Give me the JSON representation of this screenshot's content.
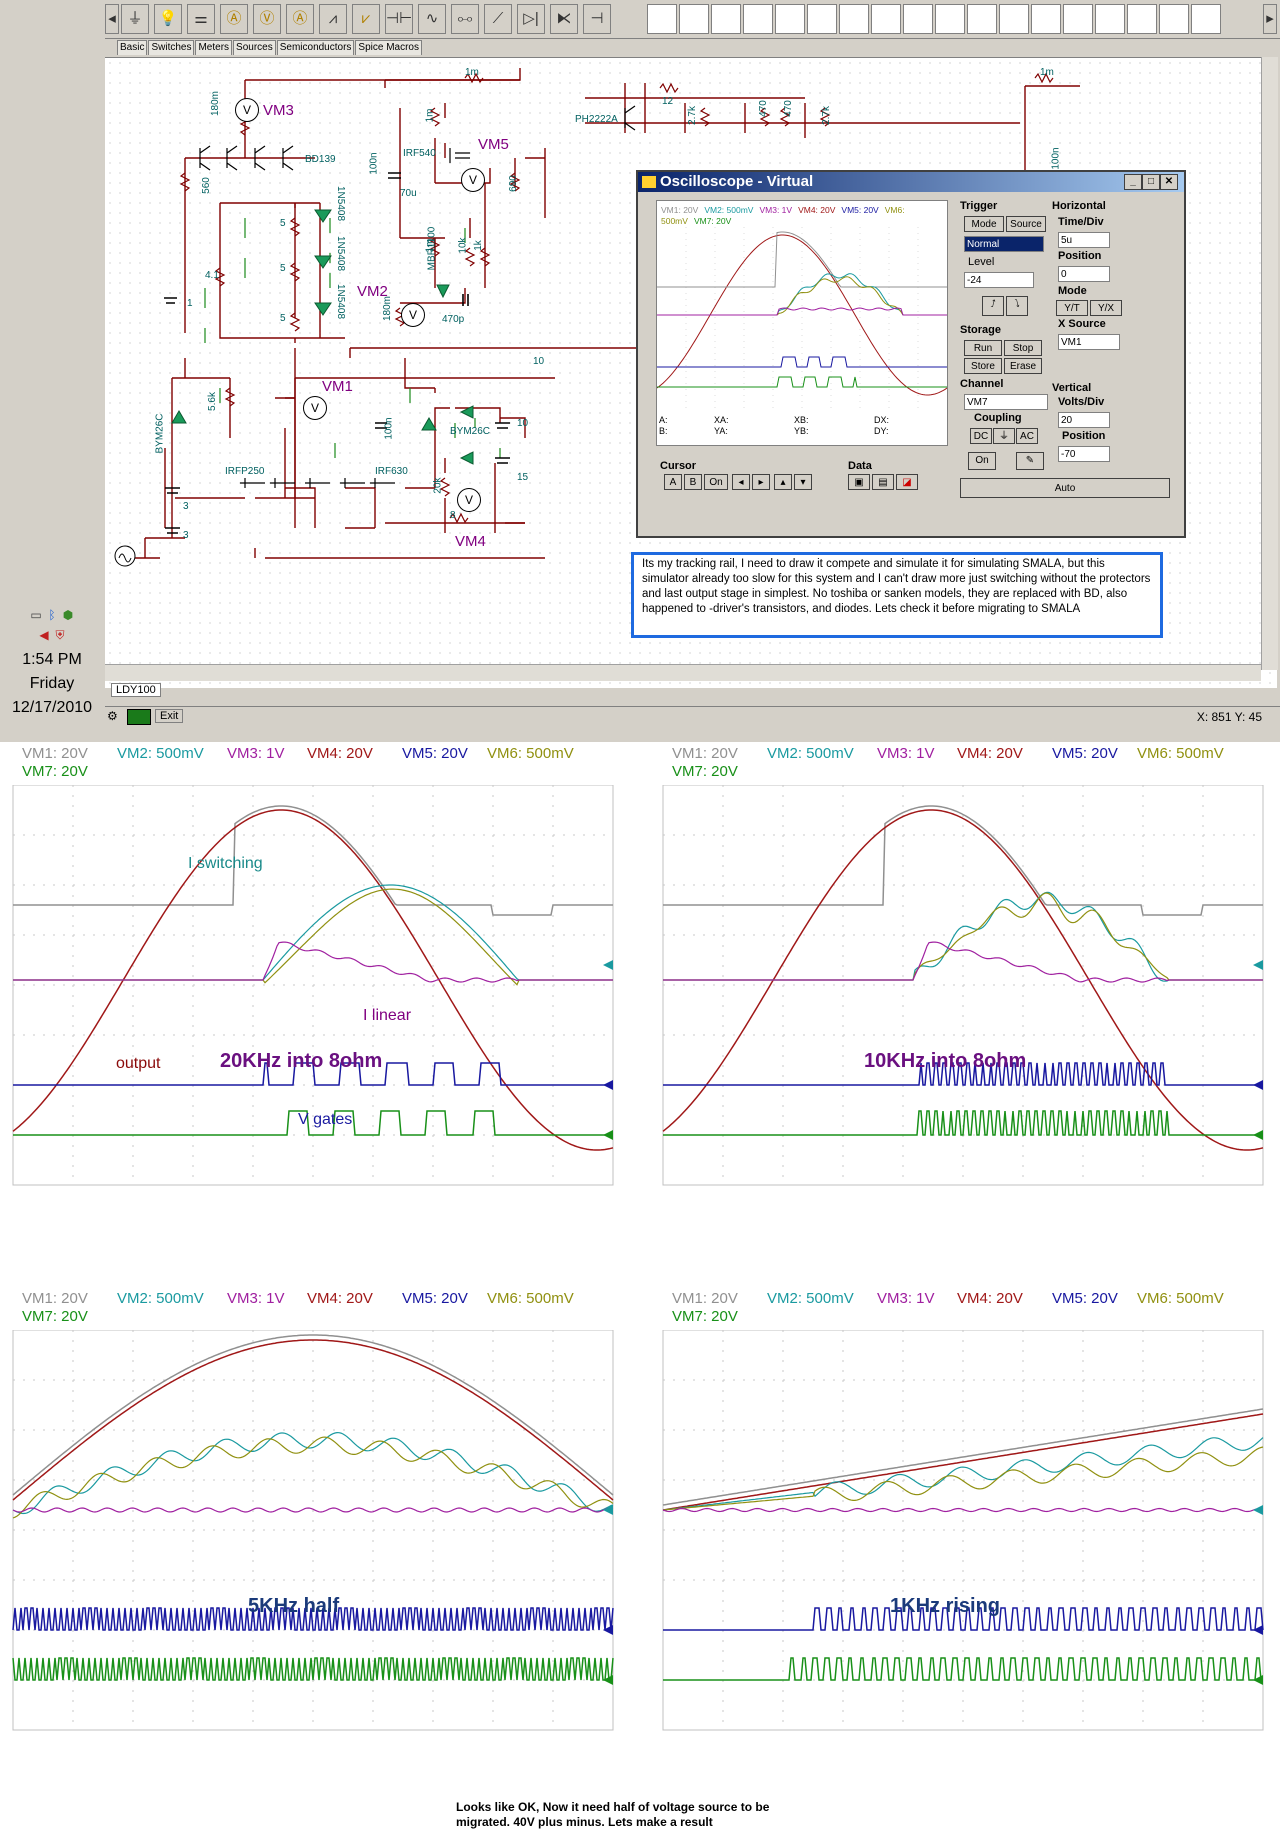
{
  "tray": {
    "time": "1:54 PM",
    "day": "Friday",
    "date": "12/17/2010"
  },
  "toolbar": {
    "icons": [
      "ground-icon",
      "bulb-icon",
      "battery-icon",
      "ammeter-icon",
      "voltmeter-icon",
      "ammeter2-icon",
      "resistor-icon",
      "potentiometer-icon",
      "capacitor-icon",
      "inductor-icon",
      "transformer-icon",
      "switch-icon",
      "diode-icon",
      "zener-icon",
      "plus-icon"
    ],
    "tabs": [
      "Basic",
      "Switches",
      "Meters",
      "Sources",
      "Semiconductors",
      "Spice Macros"
    ]
  },
  "schematic": {
    "sheet_tab": "LDY100",
    "status_exit": "Exit",
    "coords": "X: 851  Y: 45",
    "meters": {
      "vm1": "VM1",
      "vm2": "VM2",
      "vm3": "VM3",
      "vm4": "VM4",
      "vm5": "VM5"
    },
    "labels": {
      "r180m": "180m",
      "r1m_a": "1m",
      "r1m_b": "1m",
      "r1m_c": "1m",
      "r1m_d": "1m",
      "r560": "560",
      "bd139": "BD139",
      "q5": "5",
      "q5b": "5",
      "q5c": "5",
      "d1": "1N5408",
      "d2": "1N5408",
      "d3": "1N5408",
      "r41": "4.1",
      "b1": "1",
      "r56k": "5.6k",
      "bym1": "BYM26C",
      "bym2": "BYM26C",
      "irf540": "IRF540",
      "irfp250": "IRFP250",
      "irf630": "IRF630",
      "mbr": "MBR1100",
      "c100n": "100n",
      "c100n_b": "100n",
      "c100n_c": "100n",
      "l70u": "70u",
      "r10k": "10k",
      "r1k": "1k",
      "r690": "690",
      "c470p": "470p",
      "ph": "PH2222A",
      "r12": "12",
      "r27k": "2.7k",
      "r470": "470",
      "r470b": "470",
      "r27kb": "2.7k",
      "r20k": "20k",
      "r8": "8",
      "b10": "10",
      "b15": "15",
      "b3": "3",
      "b3b": "3",
      "b80": "80",
      "r180m_b": "180m",
      "r10": "10"
    }
  },
  "oscilloscope": {
    "title": "Oscilloscope - Virtual",
    "screen_legend": [
      "VM1: 20V",
      "VM2: 500mV",
      "VM3: 1V",
      "VM4: 20V",
      "VM5: 20V",
      "VM6: 500mV",
      "VM7: 20V"
    ],
    "cursor_readout": {
      "a": "A:",
      "b": "B:",
      "xa": "XA:",
      "ya": "YA:",
      "xb": "XB:",
      "yb": "YB:",
      "dx": "DX:",
      "dy": "DY:"
    },
    "trigger": {
      "label": "Trigger",
      "mode_btn": "Mode",
      "source_btn": "Source",
      "mode_value": "Normal",
      "level_label": "Level",
      "level_value": "-24"
    },
    "horizontal": {
      "label": "Horizontal",
      "timediv_label": "Time/Div",
      "timediv_value": "5u",
      "position_label": "Position",
      "position_value": "0",
      "mode_label": "Mode",
      "yt": "Y/T",
      "yx": "Y/X",
      "xsource_label": "X Source",
      "xsource_value": "VM1"
    },
    "storage": {
      "label": "Storage",
      "run": "Run",
      "stop": "Stop",
      "store": "Store",
      "erase": "Erase"
    },
    "channel": {
      "label": "Channel",
      "value": "VM7",
      "coupling_label": "Coupling",
      "dc": "DC",
      "gnd": "⏚",
      "ac": "AC",
      "on": "On"
    },
    "vertical": {
      "label": "Vertical",
      "voltsdiv_label": "Volts/Div",
      "voltsdiv_value": "20",
      "position_label": "Position",
      "position_value": "-70"
    },
    "cursor": {
      "label": "Cursor",
      "a": "A",
      "b": "B",
      "on": "On"
    },
    "data": {
      "label": "Data"
    },
    "auto": "Auto"
  },
  "note": "Its my tracking rail, I need to draw it compete and simulate it for simulating SMALA, but this simulator already too slow for this system and I can't draw more just switching without the  protectors and last output stage in simplest. No toshiba or sanken models, they are replaced with BD, also happened to -driver's transistors, and diodes. Lets check it before migrating to SMALA",
  "panels": [
    {
      "caption": "20KHz into 8ohm",
      "mode": "sine20"
    },
    {
      "caption": "10KHz into 8ohm",
      "mode": "sine10"
    },
    {
      "caption": "5KHz half",
      "mode": "half5"
    },
    {
      "caption": "1KHz rising",
      "mode": "rise1"
    }
  ],
  "channels": [
    {
      "label": "VM1: 20V",
      "color": "#909090"
    },
    {
      "label": "VM2: 500mV",
      "color": "#1a9aa0"
    },
    {
      "label": "VM3: 1V",
      "color": "#a020a0"
    },
    {
      "label": "VM4: 20V",
      "color": "#a01818"
    },
    {
      "label": "VM5: 20V",
      "color": "#1818a0"
    },
    {
      "label": "VM6: 500mV",
      "color": "#909010"
    },
    {
      "label": "VM7: 20V",
      "color": "#189018"
    }
  ],
  "annotations": {
    "i_switching": "I switching",
    "i_linear": "I linear",
    "output": "output",
    "v_gates": "V gates"
  },
  "bottom_note": "Looks like OK, Now it need half of voltage source to be migrated. 40V plus minus. Lets make a result"
}
